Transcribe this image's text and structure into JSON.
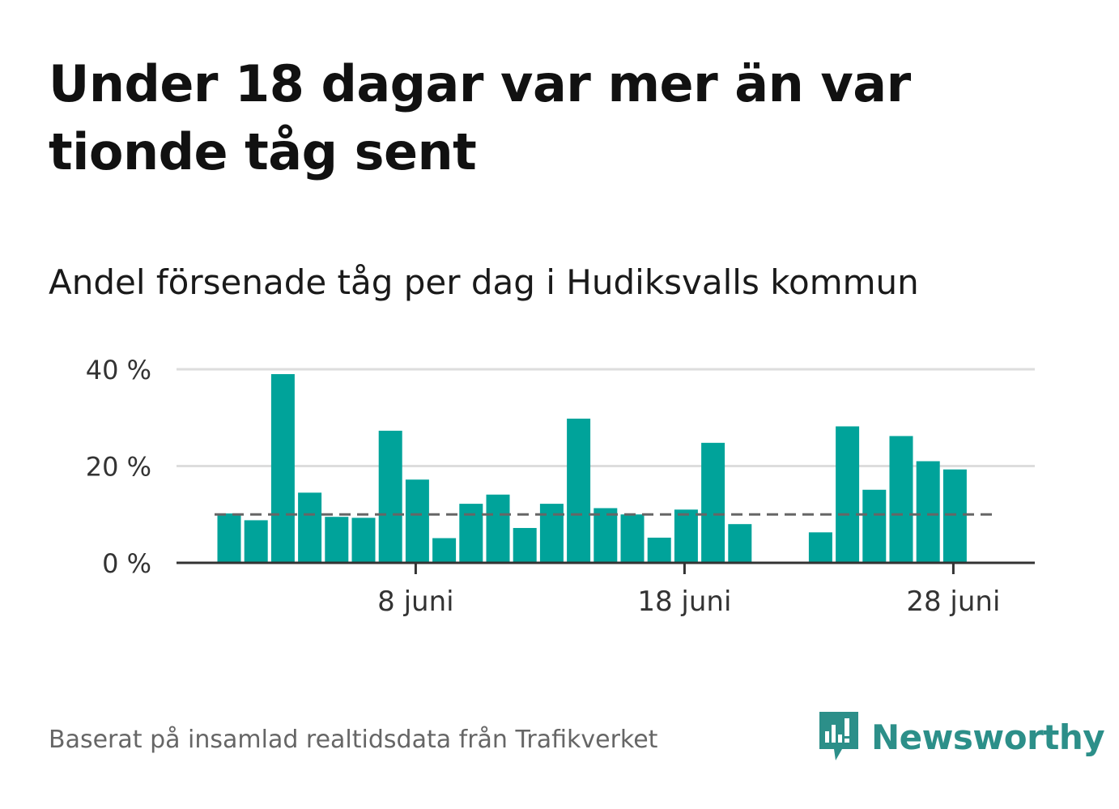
{
  "header": {
    "title": "Under 18 dagar var mer än var tionde tåg sent",
    "subtitle": "Andel försenade tåg per dag i Hudiksvalls kommun"
  },
  "footer": {
    "source": "Baserat på insamlad realtidsdata från Trafikverket",
    "brand": "Newsworthy"
  },
  "colors": {
    "bar": "#00a39a",
    "reference_line": "#666666",
    "brand": "#2c8f89"
  },
  "chart_data": {
    "type": "bar",
    "x_unit": "dag i juni",
    "x": [
      1,
      2,
      3,
      4,
      5,
      6,
      7,
      8,
      9,
      10,
      11,
      12,
      13,
      14,
      15,
      16,
      17,
      18,
      19,
      20,
      21,
      22,
      23,
      24,
      25,
      26,
      27,
      28
    ],
    "values": [
      10.2,
      8.8,
      39,
      14.5,
      9.5,
      9.3,
      27.3,
      17.2,
      5.1,
      12.2,
      14.1,
      7.2,
      12.2,
      29.8,
      11.3,
      10,
      5.2,
      11,
      24.8,
      8,
      null,
      null,
      6.3,
      28.2,
      15.1,
      26.2,
      21,
      19.3
    ],
    "ylim": [
      0,
      40
    ],
    "yticks": [
      0,
      20,
      40
    ],
    "ytick_labels": [
      "0 %",
      "20 %",
      "40 %"
    ],
    "xticks": [
      8,
      18,
      28
    ],
    "xtick_labels": [
      "8 juni",
      "18 juni",
      "28 juni"
    ],
    "reference_line": {
      "value": 10,
      "style": "dashed"
    },
    "grid": true,
    "legend": "none"
  }
}
